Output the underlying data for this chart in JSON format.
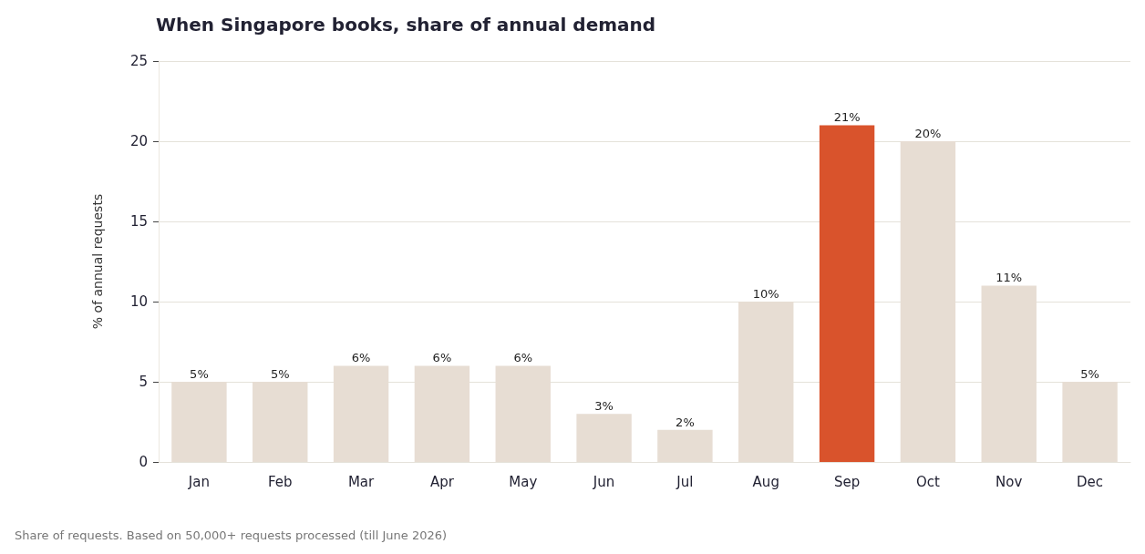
{
  "chart_data": {
    "type": "bar",
    "title": "When Singapore books, share of annual demand",
    "ylabel": "% of annual requests",
    "categories": [
      "Jan",
      "Feb",
      "Mar",
      "Apr",
      "May",
      "Jun",
      "Jul",
      "Aug",
      "Sep",
      "Oct",
      "Nov",
      "Dec"
    ],
    "values": [
      5,
      5,
      6,
      6,
      6,
      3,
      2,
      10,
      21,
      20,
      11,
      5
    ],
    "colors": [
      "#e7ddd3",
      "#e7ddd3",
      "#e7ddd3",
      "#e7ddd3",
      "#e7ddd3",
      "#e7ddd3",
      "#e7ddd3",
      "#e7ddd3",
      "#d9532c",
      "#e7ddd3",
      "#e7ddd3",
      "#e7ddd3"
    ],
    "value_labels": [
      "5%",
      "5%",
      "6%",
      "6%",
      "6%",
      "3%",
      "2%",
      "10%",
      "21%",
      "20%",
      "11%",
      "5%"
    ],
    "ylim": [
      0,
      25
    ],
    "yticks": [
      0,
      5,
      10,
      15,
      20,
      25
    ],
    "grid": "y",
    "annotations": [
      "Share of requests. Based on 50,000+ requests processed (till June 2026)"
    ]
  }
}
